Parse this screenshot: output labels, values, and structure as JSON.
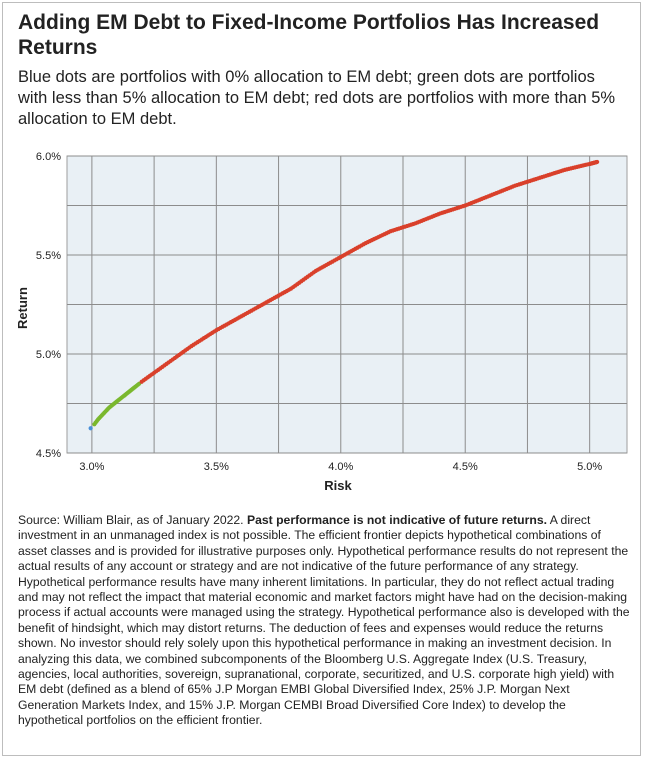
{
  "title": "Adding EM Debt to Fixed-Income Portfolios Has Increased Returns",
  "subtitle": "Blue dots are portfolios with 0% allocation to EM debt; green dots are portfolios with less than 5% allocation to EM debt; red dots are portfolios with more than 5% allocation to EM debt.",
  "note": {
    "source": "Source: William Blair, as of January 2022.",
    "bold": "Past performance is not indicative of future returns.",
    "body": "A direct investment in an unmanaged index is not possible. The efficient frontier depicts hypothetical combinations of asset classes and is provided for illustrative purposes only. Hypothetical performance results do not represent the actual results of any account or strategy and are not indicative of the future performance of any strategy. Hypothetical performance results have many inherent limitations. In particular, they do not reflect actual trading and may not reflect the impact that material economic and market factors might have had on the decision-making process if actual accounts were managed using the strategy. Hypothetical performance also is developed with the benefit of hindsight, which may distort returns. The deduction of fees and expenses would reduce the returns shown. No investor should rely solely upon this hypothetical performance in making an investment decision. In analyzing this data, we combined subcomponents of the Bloomberg U.S. Aggregate Index (U.S. Treasury, agencies, local authorities, sovereign, supranational, corporate, securitized, and U.S. corporate high yield) with EM debt (defined as a blend of 65% J.P Morgan EMBI Global Diversified Index, 25% J.P. Morgan Next Generation Markets Index, and 15% J.P. Morgan CEMBI Broad Diversified Core Index) to develop the hypothetical portfolios on the efficient frontier."
  },
  "chart_data": {
    "type": "scatter",
    "xlabel": "Risk",
    "ylabel": "Return",
    "xlim": [
      2.9,
      5.15
    ],
    "ylim": [
      4.5,
      6.0
    ],
    "xticks": [
      3.0,
      3.5,
      4.0,
      4.5,
      5.0
    ],
    "xtick_labels": [
      "3.0%",
      "3.5%",
      "4.0%",
      "4.5%",
      "5.0%"
    ],
    "yticks": [
      4.5,
      5.0,
      5.5,
      6.0
    ],
    "ytick_labels": [
      "4.5%",
      "5.0%",
      "5.5%",
      "6.0%"
    ],
    "grid": true,
    "plot_background": "#e9f0f5",
    "series": [
      {
        "color": "#4a90d9",
        "points": [
          [
            2.995,
            4.625
          ]
        ]
      },
      {
        "color": "#7ab82e",
        "points": [
          [
            3.01,
            4.645
          ],
          [
            3.025,
            4.67
          ],
          [
            3.04,
            4.69
          ],
          [
            3.055,
            4.71
          ],
          [
            3.07,
            4.73
          ],
          [
            3.085,
            4.745
          ],
          [
            3.1,
            4.76
          ],
          [
            3.115,
            4.775
          ],
          [
            3.13,
            4.79
          ],
          [
            3.145,
            4.805
          ],
          [
            3.16,
            4.82
          ],
          [
            3.175,
            4.835
          ],
          [
            3.19,
            4.85
          ]
        ]
      },
      {
        "color": "#d9402b",
        "points": [
          [
            3.2,
            4.86
          ],
          [
            3.3,
            4.95
          ],
          [
            3.4,
            5.04
          ],
          [
            3.5,
            5.12
          ],
          [
            3.6,
            5.19
          ],
          [
            3.7,
            5.26
          ],
          [
            3.8,
            5.33
          ],
          [
            3.9,
            5.42
          ],
          [
            4.0,
            5.49
          ],
          [
            4.1,
            5.56
          ],
          [
            4.2,
            5.62
          ],
          [
            4.3,
            5.66
          ],
          [
            4.4,
            5.71
          ],
          [
            4.5,
            5.75
          ],
          [
            4.6,
            5.8
          ],
          [
            4.7,
            5.85
          ],
          [
            4.8,
            5.89
          ],
          [
            4.9,
            5.93
          ],
          [
            5.0,
            5.96
          ],
          [
            5.03,
            5.97
          ]
        ]
      }
    ]
  }
}
